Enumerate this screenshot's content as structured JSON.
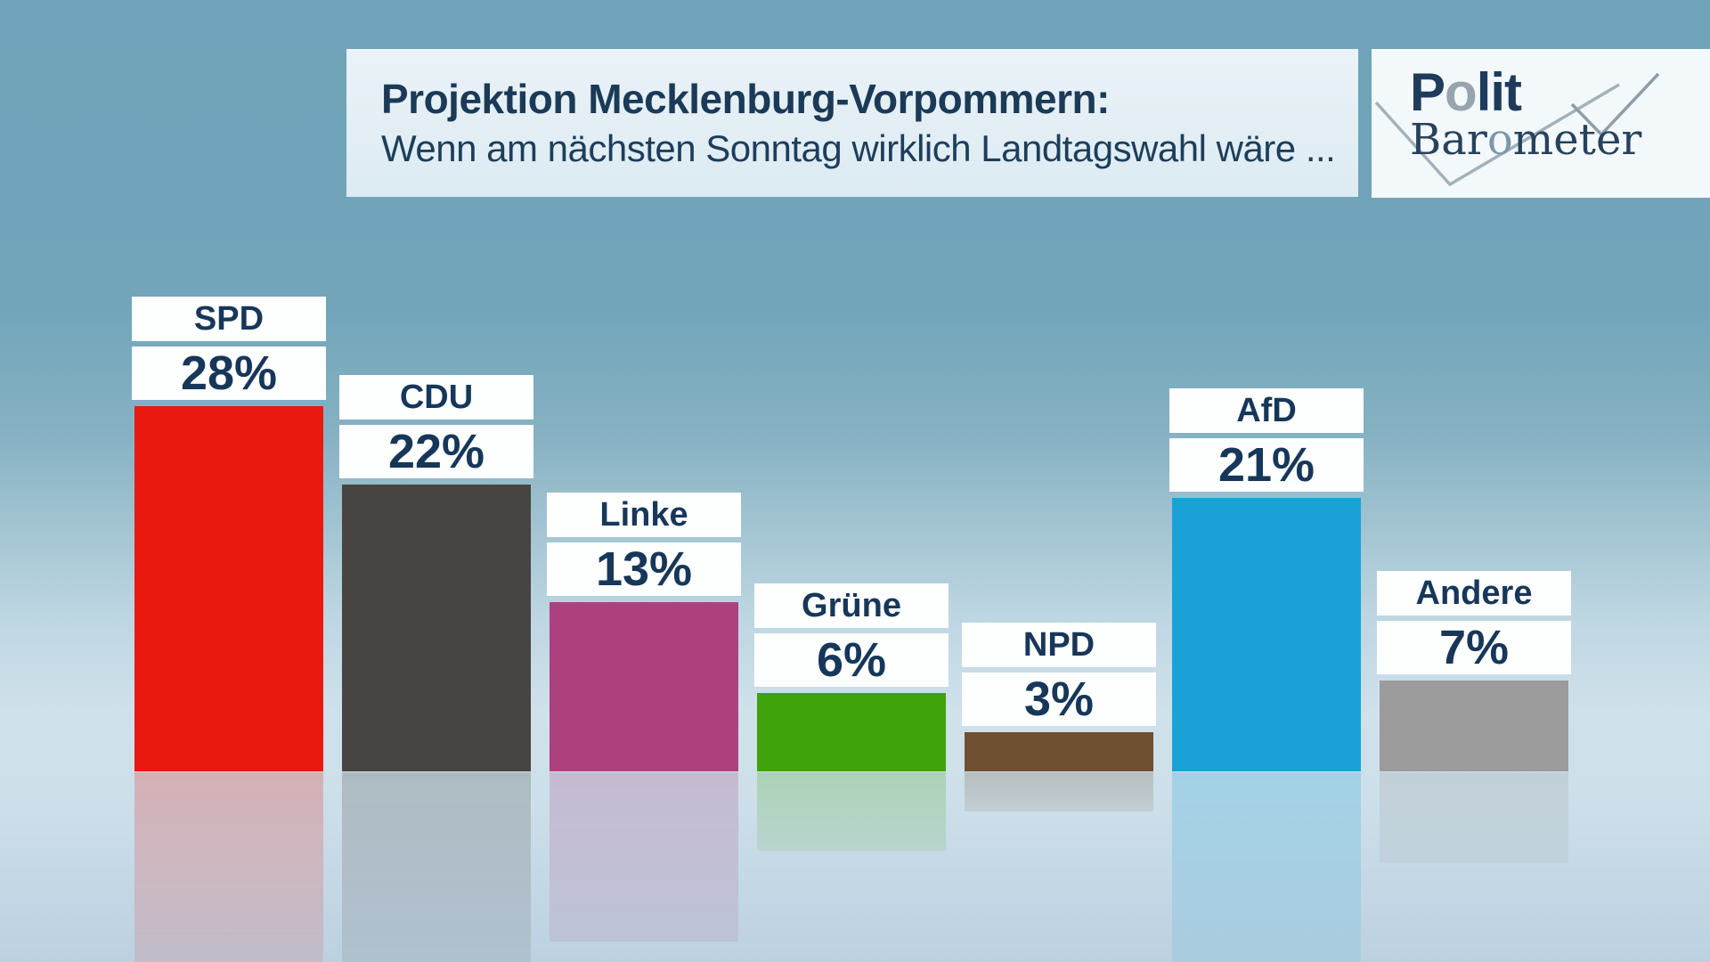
{
  "header": {
    "title": "Projektion Mecklenburg-Vorpommern:",
    "subtitle": "Wenn am nächsten Sonntag wirklich Landtagswahl wäre ..."
  },
  "logo": {
    "word1": {
      "pre": "P",
      "o": "o",
      "post": "lit"
    },
    "word2": {
      "pre": "Bar",
      "o": "o",
      "post": "meter"
    }
  },
  "colors": {
    "title_text": "#1b3a57",
    "label_text": "#17375a",
    "label_box_bg": "#fdfefe",
    "zigzag_gray": "#a3b1ba"
  },
  "chart_data": {
    "type": "bar",
    "title": "Projektion Mecklenburg-Vorpommern:",
    "subtitle": "Wenn am nächsten Sonntag wirklich Landtagswahl wäre ...",
    "categories": [
      "SPD",
      "CDU",
      "Linke",
      "Grüne",
      "NPD",
      "AfD",
      "Andere"
    ],
    "values": [
      28,
      22,
      13,
      6,
      3,
      21,
      7
    ],
    "value_labels": [
      "28%",
      "22%",
      "13%",
      "6%",
      "3%",
      "21%",
      "7%"
    ],
    "bar_colors": [
      "#e9190f",
      "#474442",
      "#ad4180",
      "#3ea30a",
      "#6f4f31",
      "#1aa2d6",
      "#9b9b9b"
    ],
    "unit": "%",
    "xlabel": "",
    "ylabel": "",
    "ylim": [
      0,
      30
    ],
    "grid": false,
    "legend": "none",
    "notes": "each bar labeled above with party name box and percent value box; mirrored reflection of bars below baseline"
  }
}
